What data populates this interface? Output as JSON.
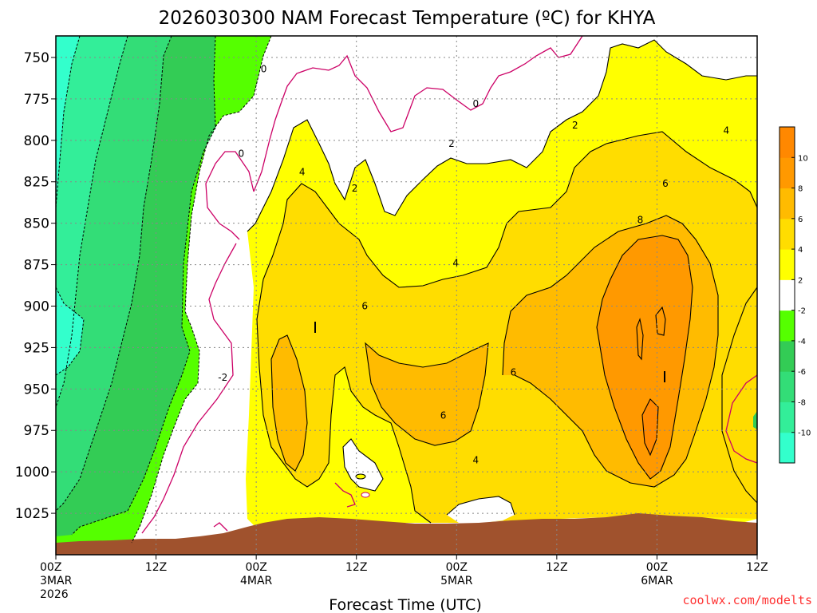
{
  "chart_data": {
    "type": "heatmap",
    "title": "2026030300 NAM Forecast Temperature (ºC) for KHYA",
    "xlabel": "Forecast Time (UTC)",
    "ylabel": "",
    "credit": "coolwx.com/modelts",
    "x_ticks": [
      {
        "hours": 0,
        "lines": [
          "00Z",
          "3MAR",
          "2026"
        ]
      },
      {
        "hours": 12,
        "lines": [
          "12Z"
        ]
      },
      {
        "hours": 24,
        "lines": [
          "00Z",
          "4MAR"
        ]
      },
      {
        "hours": 36,
        "lines": [
          "12Z"
        ]
      },
      {
        "hours": 48,
        "lines": [
          "00Z",
          "5MAR"
        ]
      },
      {
        "hours": 60,
        "lines": [
          "12Z"
        ]
      },
      {
        "hours": 72,
        "lines": [
          "00Z",
          "6MAR"
        ]
      },
      {
        "hours": 84,
        "lines": [
          "12Z"
        ]
      }
    ],
    "xlim": [
      0,
      84
    ],
    "y_ticks": [
      750,
      775,
      800,
      825,
      850,
      875,
      900,
      925,
      950,
      975,
      1000,
      1025
    ],
    "ylim": [
      737,
      1050
    ],
    "colorbar": {
      "levels": [
        -12,
        -10,
        -8,
        -6,
        -4,
        -2,
        2,
        4,
        6,
        8,
        10,
        12
      ],
      "labels": [
        "-10",
        "-8",
        "-6",
        "-4",
        "-2",
        "2",
        "4",
        "6",
        "8",
        "10"
      ],
      "colors": [
        "#33ffcc",
        "#33ee99",
        "#33dd77",
        "#33cc55",
        "#55ff00",
        "#ffffff",
        "#ffff00",
        "#ffdd00",
        "#ffbb00",
        "#ff9900",
        "#ff8800"
      ]
    },
    "contour_labels": [
      {
        "text": "0",
        "hours": 24.9,
        "p": 757
      },
      {
        "text": "0",
        "hours": 50.3,
        "p": 778
      },
      {
        "text": "0",
        "hours": 22.2,
        "p": 808
      },
      {
        "text": "2",
        "hours": 62.2,
        "p": 791
      },
      {
        "text": "2",
        "hours": 47.4,
        "p": 802
      },
      {
        "text": "2",
        "hours": 35.8,
        "p": 829
      },
      {
        "text": "4",
        "hours": 80.3,
        "p": 794
      },
      {
        "text": "4",
        "hours": 29.5,
        "p": 819
      },
      {
        "text": "4",
        "hours": 47.9,
        "p": 874
      },
      {
        "text": "4",
        "hours": 50.3,
        "p": 993
      },
      {
        "text": "6",
        "hours": 73.0,
        "p": 826
      },
      {
        "text": "6",
        "hours": 37.0,
        "p": 900
      },
      {
        "text": "6",
        "hours": 54.8,
        "p": 940
      },
      {
        "text": "6",
        "hours": 46.4,
        "p": 966
      },
      {
        "text": "8",
        "hours": 70.0,
        "p": 848
      },
      {
        "text": "-2",
        "hours": 20.0,
        "p": 943
      }
    ]
  }
}
